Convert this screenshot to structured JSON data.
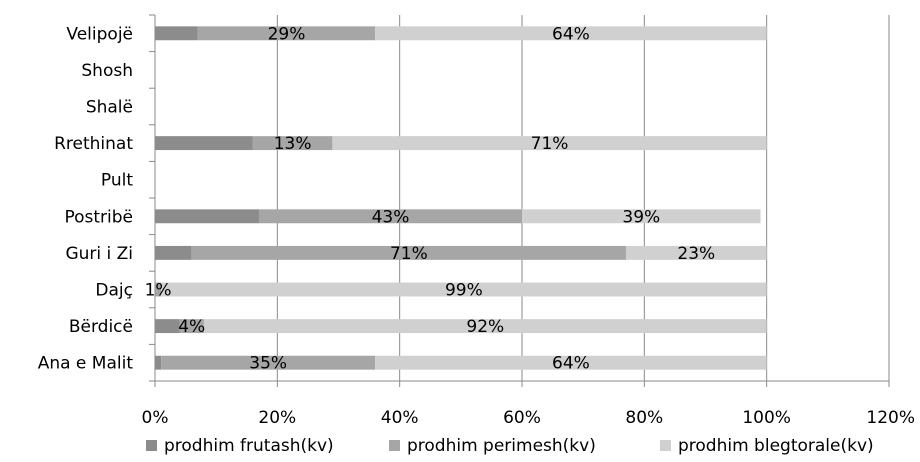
{
  "chart_data": {
    "type": "bar",
    "orientation": "horizontal",
    "stacked": true,
    "categories": [
      "Velipojë",
      "Shosh",
      "Shalë",
      "Rrethinat",
      "Pult",
      "Postribë",
      "Guri i Zi",
      "Dajç",
      "Bërdicë",
      "Ana e Malit"
    ],
    "series": [
      {
        "name": "prodhim frutash(kv)",
        "color": "#8c8c8c",
        "values": [
          7,
          0,
          0,
          16,
          0,
          17,
          6,
          0,
          4,
          1
        ]
      },
      {
        "name": "prodhim perimesh(kv)",
        "color": "#a6a6a6",
        "values": [
          29,
          0,
          0,
          13,
          0,
          43,
          71,
          1,
          4,
          35
        ]
      },
      {
        "name": "prodhim blegtorale(kv)",
        "color": "#d0d0d0",
        "values": [
          64,
          0,
          0,
          71,
          0,
          39,
          23,
          99,
          92,
          64
        ]
      }
    ],
    "data_labels": [
      {
        "category": "Velipojë",
        "labels": [
          "",
          "29%",
          "64%"
        ]
      },
      {
        "category": "Shosh",
        "labels": [
          "",
          "",
          ""
        ]
      },
      {
        "category": "Shalë",
        "labels": [
          "",
          "",
          ""
        ]
      },
      {
        "category": "Rrethinat",
        "labels": [
          "",
          "13%",
          "71%"
        ]
      },
      {
        "category": "Pult",
        "labels": [
          "",
          "",
          ""
        ]
      },
      {
        "category": "Postribë",
        "labels": [
          "",
          "43%",
          "39%"
        ]
      },
      {
        "category": "Guri i Zi",
        "labels": [
          "",
          "71%",
          "23%"
        ]
      },
      {
        "category": "Dajç",
        "labels": [
          "",
          "1%",
          "99%"
        ]
      },
      {
        "category": "Bërdicë",
        "labels": [
          "",
          "4%",
          "92%"
        ]
      },
      {
        "category": "Ana e Malit",
        "labels": [
          "",
          "35%",
          "64%"
        ]
      }
    ],
    "x_ticks": [
      "0%",
      "20%",
      "40%",
      "60%",
      "80%",
      "100%",
      "120%"
    ],
    "xlim": [
      0,
      120
    ],
    "grid": true,
    "legend_position": "bottom"
  }
}
